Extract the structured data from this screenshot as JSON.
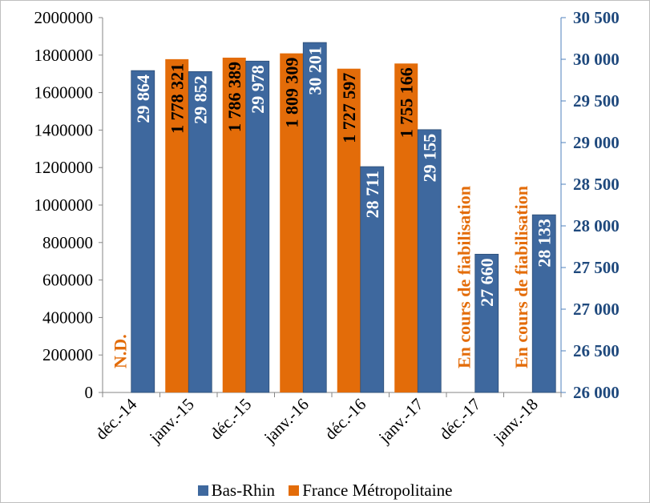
{
  "chart_data": {
    "type": "bar",
    "categories": [
      "déc.-14",
      "janv.-15",
      "déc.-15",
      "janv.-16",
      "déc.-16",
      "janv.-17",
      "déc.-17",
      "janv.-18"
    ],
    "series": [
      {
        "name": "France Métropolitaine",
        "axis": "left",
        "color": "#e36c09",
        "values": [
          null,
          1778321,
          1786389,
          1809309,
          1727597,
          1755166,
          null,
          null
        ],
        "labels": [
          "N.D.",
          "1 778 321",
          "1 786 389",
          "1 809 309",
          "1 727 597",
          "1 755 166",
          "En cours de fiabilisation",
          "En cours de fiabilisation"
        ]
      },
      {
        "name": "Bas-Rhin",
        "axis": "right",
        "color": "#3e689e",
        "values": [
          29864,
          29852,
          29978,
          30201,
          28711,
          29155,
          27660,
          28133
        ],
        "labels": [
          "29 864",
          "29 852",
          "29 978",
          "30 201",
          "28 711",
          "29 155",
          "27 660",
          "28 133"
        ]
      }
    ],
    "left_axis": {
      "ylim": [
        0,
        2000000
      ],
      "ticks": [
        "0",
        "200000",
        "400000",
        "600000",
        "800000",
        "1000000",
        "1200000",
        "1400000",
        "1600000",
        "1800000",
        "2000000"
      ]
    },
    "right_axis": {
      "ylim": [
        26000,
        30500
      ],
      "ticks": [
        "26 000",
        "26 500",
        "27 000",
        "27 500",
        "28 000",
        "28 500",
        "29 000",
        "29 500",
        "30 000",
        "30 500"
      ],
      "color": "#1f497d"
    },
    "grid": false,
    "legend_position": "bottom"
  }
}
